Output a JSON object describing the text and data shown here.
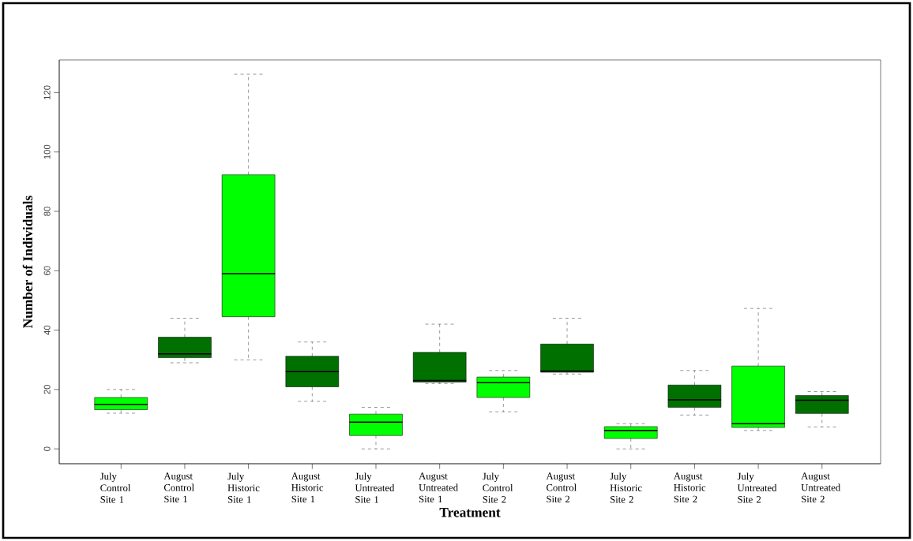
{
  "chart_data": {
    "type": "box",
    "xlabel": "Treatment",
    "ylabel": "Number of Individuals",
    "categories": [
      "July Control Site 1",
      "August Control Site 1",
      "July Historic Site 1",
      "August Historic Site 1",
      "July Untreated Site 1",
      "August Untreated Site 1",
      "July Control Site 2",
      "August Control Site 2",
      "July Historic Site 2",
      "August Historic Site 2",
      "July Untreated Site 2",
      "August Untreated Site 2"
    ],
    "colors": [
      "#00ff00",
      "#007000",
      "#00ff00",
      "#007000",
      "#00ff00",
      "#007000",
      "#00ff00",
      "#007000",
      "#00ff00",
      "#007000",
      "#00ff00",
      "#007000"
    ],
    "boxes": [
      {
        "low": 12,
        "q1": 13.2,
        "median": 15,
        "q3": 17.3,
        "high": 20
      },
      {
        "low": 29,
        "q1": 30.7,
        "median": 32,
        "q3": 37.6,
        "high": 44
      },
      {
        "low": 30,
        "q1": 44.5,
        "median": 59,
        "q3": 92.3,
        "high": 126.2
      },
      {
        "low": 16,
        "q1": 20.9,
        "median": 26,
        "q3": 31.2,
        "high": 36
      },
      {
        "low": 0,
        "q1": 4.5,
        "median": 9,
        "q3": 11.7,
        "high": 14
      },
      {
        "low": 22,
        "q1": 22.5,
        "median": 23,
        "q3": 32.5,
        "high": 42
      },
      {
        "low": 12.5,
        "q1": 17.3,
        "median": 22.3,
        "q3": 24.2,
        "high": 26.4
      },
      {
        "low": 25.2,
        "q1": 25.8,
        "median": 26.2,
        "q3": 35.3,
        "high": 44
      },
      {
        "low": 0,
        "q1": 3.5,
        "median": 6.2,
        "q3": 7.5,
        "high": 8.5
      },
      {
        "low": 11.4,
        "q1": 14,
        "median": 16.5,
        "q3": 21.5,
        "high": 26.4
      },
      {
        "low": 6.2,
        "q1": 7.2,
        "median": 8.5,
        "q3": 27.9,
        "high": 47.3
      },
      {
        "low": 7.4,
        "q1": 11.9,
        "median": 16.4,
        "q3": 18,
        "high": 19.3
      }
    ],
    "ylim": [
      -5,
      131
    ],
    "yticks": [
      0,
      20,
      40,
      60,
      80,
      100,
      120
    ]
  }
}
